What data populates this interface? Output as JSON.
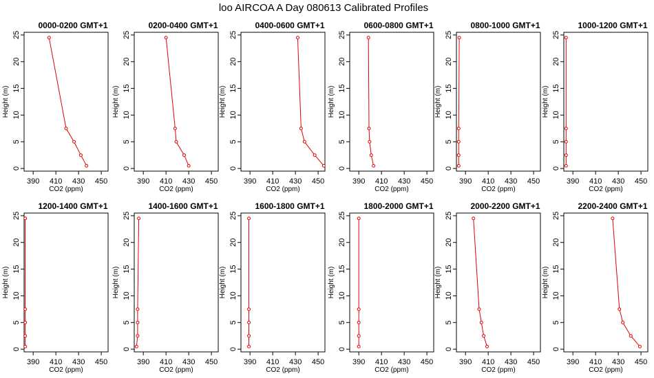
{
  "figure": {
    "title": "loo AIRCOA A  Day 080613  Calibrated Profiles"
  },
  "chart_data": [
    {
      "type": "line",
      "title": "0000-0200 GMT+1",
      "xlabel": "CO2 (ppm)",
      "ylabel": "Height (m)",
      "xticks": [
        390,
        410,
        430,
        450
      ],
      "yticks": [
        0,
        5,
        10,
        15,
        20,
        25
      ],
      "xlim": [
        382,
        456
      ],
      "ylim": [
        -0.5,
        25.5
      ],
      "series": [
        {
          "color": "#e00000",
          "x": [
            437,
            432,
            426,
            419,
            404
          ],
          "y": [
            0.5,
            2.5,
            5,
            7.5,
            24.5
          ]
        }
      ]
    },
    {
      "type": "line",
      "title": "0200-0400 GMT+1",
      "xlabel": "CO2 (ppm)",
      "ylabel": "Height (m)",
      "xticks": [
        390,
        410,
        430,
        450
      ],
      "yticks": [
        0,
        5,
        10,
        15,
        20,
        25
      ],
      "xlim": [
        382,
        456
      ],
      "ylim": [
        -0.5,
        25.5
      ],
      "series": [
        {
          "color": "#e00000",
          "x": [
            430,
            426,
            419,
            418,
            410
          ],
          "y": [
            0.5,
            2.5,
            5,
            7.5,
            24.5
          ]
        }
      ]
    },
    {
      "type": "line",
      "title": "0400-0600 GMT+1",
      "xlabel": "CO2 (ppm)",
      "ylabel": "Height (m)",
      "xticks": [
        390,
        410,
        430,
        450
      ],
      "yticks": [
        0,
        5,
        10,
        15,
        20,
        25
      ],
      "xlim": [
        382,
        456
      ],
      "ylim": [
        -0.5,
        25.5
      ],
      "series": [
        {
          "color": "#e00000",
          "x": [
            455,
            447,
            438,
            435,
            432
          ],
          "y": [
            0.5,
            2.5,
            5,
            7.5,
            24.5
          ]
        }
      ]
    },
    {
      "type": "line",
      "title": "0600-0800 GMT+1",
      "xlabel": "CO2 (ppm)",
      "ylabel": "Height (m)",
      "xticks": [
        390,
        410,
        430,
        450
      ],
      "yticks": [
        0,
        5,
        10,
        15,
        20,
        25
      ],
      "xlim": [
        382,
        456
      ],
      "ylim": [
        -0.5,
        25.5
      ],
      "series": [
        {
          "color": "#e00000",
          "x": [
            403,
            401,
            399.5,
            399,
            398.5
          ],
          "y": [
            0.5,
            2.5,
            5,
            7.5,
            24.5
          ]
        }
      ]
    },
    {
      "type": "line",
      "title": "0800-1000 GMT+1",
      "xlabel": "CO2 (ppm)",
      "ylabel": "Height (m)",
      "xticks": [
        390,
        410,
        430,
        450
      ],
      "yticks": [
        0,
        5,
        10,
        15,
        20,
        25
      ],
      "xlim": [
        382,
        456
      ],
      "ylim": [
        -0.5,
        25.5
      ],
      "series": [
        {
          "color": "#e00000",
          "x": [
            384,
            384,
            384,
            384,
            384.5
          ],
          "y": [
            0.5,
            2.5,
            5,
            7.5,
            24.5
          ]
        }
      ]
    },
    {
      "type": "line",
      "title": "1000-1200 GMT+1",
      "xlabel": "CO2 (ppm)",
      "ylabel": "Height (m)",
      "xticks": [
        390,
        410,
        430,
        450
      ],
      "yticks": [
        0,
        5,
        10,
        15,
        20,
        25
      ],
      "xlim": [
        382,
        456
      ],
      "ylim": [
        -0.5,
        25.5
      ],
      "series": [
        {
          "color": "#e00000",
          "x": [
            384,
            384,
            384,
            384,
            384
          ],
          "y": [
            0.5,
            2.5,
            5,
            7.5,
            24.5
          ]
        }
      ]
    },
    {
      "type": "line",
      "title": "1200-1400 GMT+1",
      "xlabel": "CO2 (ppm)",
      "ylabel": "Height (m)",
      "xticks": [
        390,
        410,
        430,
        450
      ],
      "yticks": [
        0,
        5,
        10,
        15,
        20,
        25
      ],
      "xlim": [
        382,
        456
      ],
      "ylim": [
        -0.5,
        25.5
      ],
      "series": [
        {
          "color": "#e00000",
          "x": [
            383,
            383,
            383,
            383,
            383
          ],
          "y": [
            0.5,
            2.5,
            5,
            7.5,
            24.5
          ]
        }
      ]
    },
    {
      "type": "line",
      "title": "1400-1600 GMT+1",
      "xlabel": "CO2 (ppm)",
      "ylabel": "Height (m)",
      "xticks": [
        390,
        410,
        430,
        450
      ],
      "yticks": [
        0,
        5,
        10,
        15,
        20,
        25
      ],
      "xlim": [
        382,
        456
      ],
      "ylim": [
        -0.5,
        25.5
      ],
      "series": [
        {
          "color": "#e00000",
          "x": [
            384,
            385,
            385,
            385,
            386
          ],
          "y": [
            0.5,
            2.5,
            5,
            7.5,
            24.5
          ]
        }
      ]
    },
    {
      "type": "line",
      "title": "1600-1800 GMT+1",
      "xlabel": "CO2 (ppm)",
      "ylabel": "Height (m)",
      "xticks": [
        390,
        410,
        430,
        450
      ],
      "yticks": [
        0,
        5,
        10,
        15,
        20,
        25
      ],
      "xlim": [
        382,
        456
      ],
      "ylim": [
        -0.5,
        25.5
      ],
      "series": [
        {
          "color": "#e00000",
          "x": [
            389,
            389,
            389,
            389,
            389
          ],
          "y": [
            0.5,
            2.5,
            5,
            7.5,
            24.5
          ]
        }
      ]
    },
    {
      "type": "line",
      "title": "1800-2000 GMT+1",
      "xlabel": "CO2 (ppm)",
      "ylabel": "Height (m)",
      "xticks": [
        390,
        410,
        430,
        450
      ],
      "yticks": [
        0,
        5,
        10,
        15,
        20,
        25
      ],
      "xlim": [
        382,
        456
      ],
      "ylim": [
        -0.5,
        25.5
      ],
      "series": [
        {
          "color": "#e00000",
          "x": [
            390,
            390,
            390,
            390,
            390
          ],
          "y": [
            0.5,
            2.5,
            5,
            7.5,
            24.5
          ]
        }
      ]
    },
    {
      "type": "line",
      "title": "2000-2200 GMT+1",
      "xlabel": "CO2 (ppm)",
      "ylabel": "Height (m)",
      "xticks": [
        390,
        410,
        430,
        450
      ],
      "yticks": [
        0,
        5,
        10,
        15,
        20,
        25
      ],
      "xlim": [
        382,
        456
      ],
      "ylim": [
        -0.5,
        25.5
      ],
      "series": [
        {
          "color": "#e00000",
          "x": [
            409,
            406,
            404,
            402,
            397
          ],
          "y": [
            0.5,
            2.5,
            5,
            7.5,
            24.5
          ]
        }
      ]
    },
    {
      "type": "line",
      "title": "2200-2400 GMT+1",
      "xlabel": "CO2 (ppm)",
      "ylabel": "Height (m)",
      "xticks": [
        390,
        410,
        430,
        450
      ],
      "yticks": [
        0,
        5,
        10,
        15,
        20,
        25
      ],
      "xlim": [
        382,
        456
      ],
      "ylim": [
        -0.5,
        25.5
      ],
      "series": [
        {
          "color": "#e00000",
          "x": [
            449,
            441,
            434,
            431,
            425
          ],
          "y": [
            0.5,
            2.5,
            5,
            7.5,
            24.5
          ]
        }
      ]
    }
  ]
}
